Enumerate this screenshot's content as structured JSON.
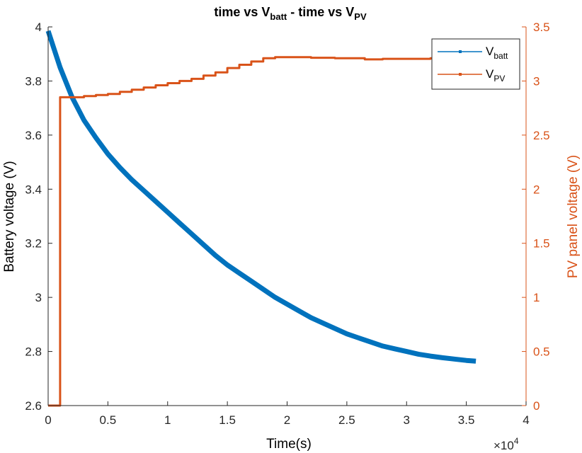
{
  "chart_data": {
    "type": "line",
    "title": {
      "main": "time vs V",
      "sub1": "batt",
      "mid": " - time vs V",
      "sub2": "PV"
    },
    "xlabel": "Time(s)",
    "x_exponent": {
      "base": "×10",
      "power": "4"
    },
    "ylabel_left": "Battery voltage (V)",
    "ylabel_right": "PV panel voltage (V)",
    "xlim": [
      0,
      40000
    ],
    "ylim_left": [
      2.6,
      4.0
    ],
    "ylim_right": [
      0,
      3.5
    ],
    "x_ticks": [
      0,
      5000,
      10000,
      15000,
      20000,
      25000,
      30000,
      35000,
      40000
    ],
    "x_tick_labels": [
      "0",
      "0.5",
      "1",
      "1.5",
      "2",
      "2.5",
      "3",
      "3.5",
      "4"
    ],
    "y_left_ticks": [
      2.6,
      2.8,
      3.0,
      3.2,
      3.4,
      3.6,
      3.8,
      4.0
    ],
    "y_left_tick_labels": [
      "2.6",
      "2.8",
      "3",
      "3.2",
      "3.4",
      "3.6",
      "3.8",
      "4"
    ],
    "y_right_ticks": [
      0,
      0.5,
      1,
      1.5,
      2,
      2.5,
      3,
      3.5
    ],
    "y_right_tick_labels": [
      "0",
      "0.5",
      "1",
      "1.5",
      "2",
      "2.5",
      "3",
      "3.5"
    ],
    "legend_position": "top-right",
    "grid": false,
    "series": [
      {
        "name": "V",
        "name_sub": "batt",
        "axis": "left",
        "color": "#0072BD",
        "x": [
          0,
          1000,
          2000,
          3000,
          4000,
          5000,
          6000,
          7000,
          8000,
          9000,
          10000,
          11000,
          12000,
          13000,
          14000,
          15000,
          16000,
          17000,
          18000,
          19000,
          20000,
          21000,
          22000,
          23000,
          24000,
          25000,
          26000,
          27000,
          28000,
          29000,
          30000,
          31000,
          32000,
          33000,
          34000,
          35000,
          35800
        ],
        "y": [
          3.985,
          3.85,
          3.74,
          3.655,
          3.59,
          3.53,
          3.48,
          3.435,
          3.395,
          3.355,
          3.315,
          3.275,
          3.235,
          3.195,
          3.155,
          3.12,
          3.09,
          3.06,
          3.03,
          3.0,
          2.975,
          2.95,
          2.925,
          2.905,
          2.885,
          2.865,
          2.85,
          2.835,
          2.82,
          2.81,
          2.8,
          2.79,
          2.783,
          2.777,
          2.772,
          2.767,
          2.764
        ]
      },
      {
        "name": "V",
        "name_sub": "PV",
        "axis": "right",
        "color": "#D95319",
        "x": [
          0,
          1000,
          1000,
          2000,
          3000,
          4000,
          5000,
          6000,
          7000,
          8000,
          9000,
          10000,
          11000,
          12000,
          13000,
          14000,
          15000,
          16000,
          17000,
          18000,
          19000,
          20000,
          22000,
          24000,
          26500,
          28000,
          30000,
          32000,
          34000,
          35800
        ],
        "y": [
          0,
          0,
          2.85,
          2.85,
          2.86,
          2.87,
          2.88,
          2.9,
          2.92,
          2.94,
          2.96,
          2.98,
          3.0,
          3.02,
          3.05,
          3.08,
          3.12,
          3.15,
          3.18,
          3.21,
          3.22,
          3.22,
          3.215,
          3.21,
          3.2,
          3.205,
          3.205,
          3.21,
          3.21,
          3.21
        ]
      }
    ]
  }
}
